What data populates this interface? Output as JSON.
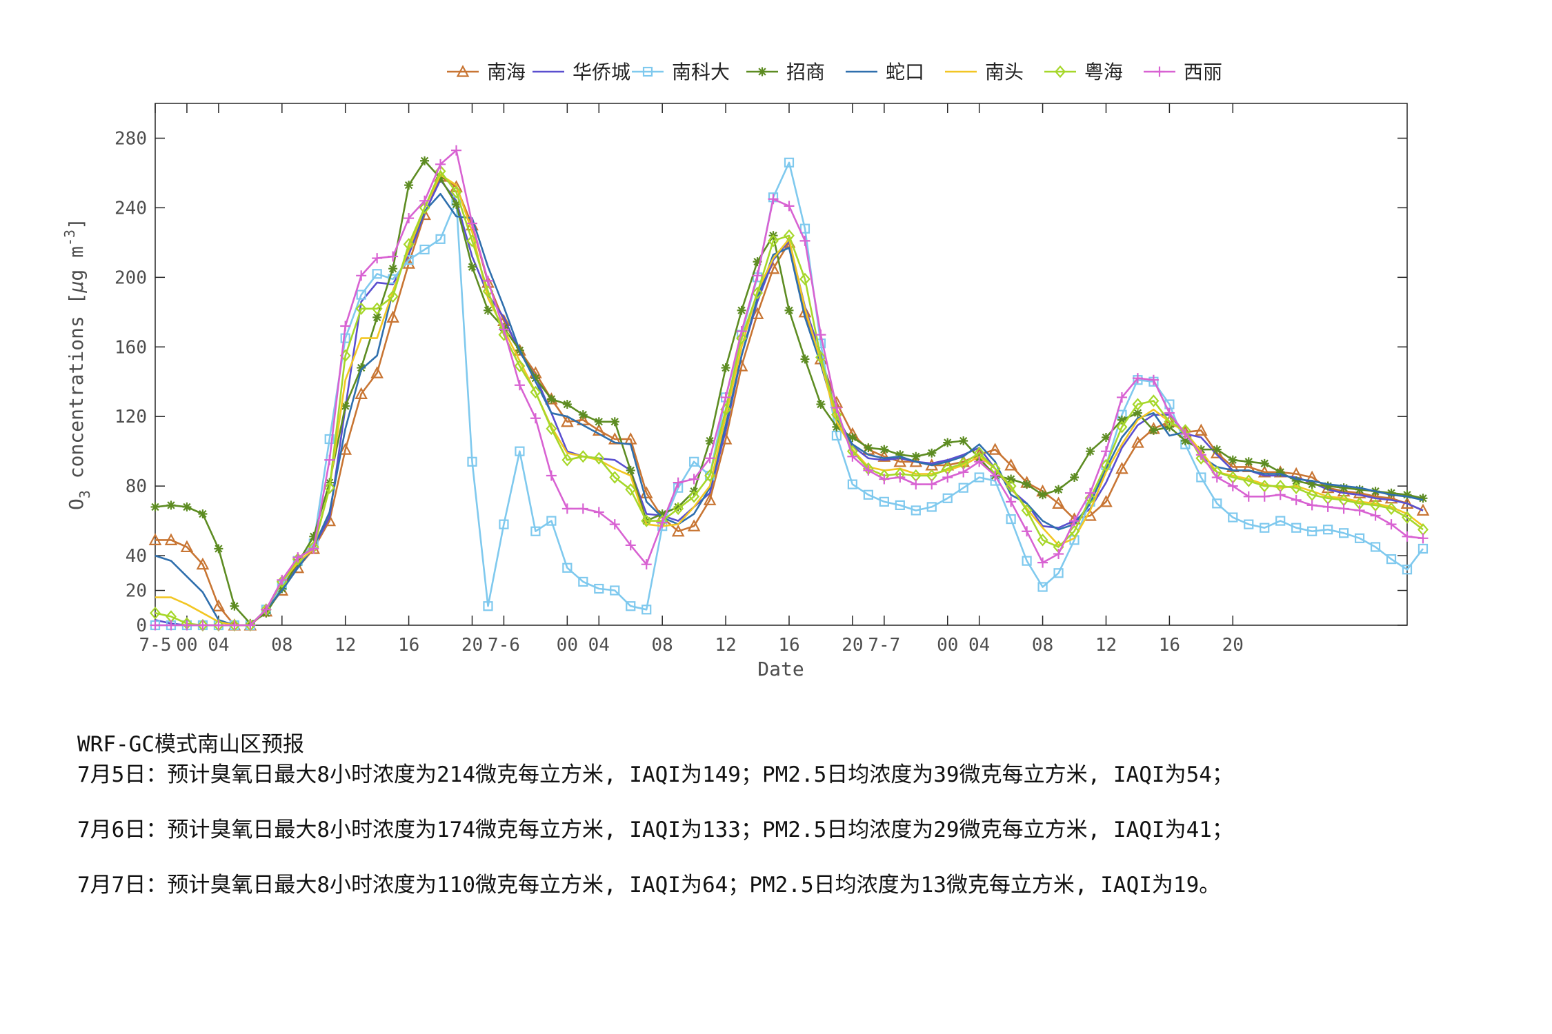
{
  "chart_data": {
    "type": "line",
    "xlabel": "Date",
    "ylabel_parts": {
      "o": "O",
      "sub": "3",
      "mid": " concentrations [",
      "mu": "μ",
      "g": "g m",
      "sup": "-3",
      "end": "]"
    },
    "ylim": [
      0,
      300
    ],
    "yticks": [
      0,
      20,
      40,
      80,
      120,
      160,
      200,
      240,
      280
    ],
    "xlim": [
      0,
      79
    ],
    "xticks": [
      {
        "x": 0,
        "label": "7-5"
      },
      {
        "x": 2,
        "label": "00"
      },
      {
        "x": 4,
        "label": "04"
      },
      {
        "x": 8,
        "label": "08"
      },
      {
        "x": 12,
        "label": "12"
      },
      {
        "x": 16,
        "label": "16"
      },
      {
        "x": 20,
        "label": "20"
      },
      {
        "x": 22,
        "label": "7-6"
      },
      {
        "x": 26,
        "label": "00"
      },
      {
        "x": 28,
        "label": "04"
      },
      {
        "x": 32,
        "label": "08"
      },
      {
        "x": 36,
        "label": "12"
      },
      {
        "x": 40,
        "label": "16"
      },
      {
        "x": 44,
        "label": "20"
      },
      {
        "x": 46,
        "label": "7-7"
      },
      {
        "x": 50,
        "label": "00"
      },
      {
        "x": 52,
        "label": "04"
      },
      {
        "x": 56,
        "label": "08"
      },
      {
        "x": 60,
        "label": "12"
      },
      {
        "x": 64,
        "label": "16"
      },
      {
        "x": 68,
        "label": "20"
      }
    ],
    "legend_position": "top",
    "series": [
      {
        "name": "南海",
        "color": "#c87533",
        "marker": "triangle",
        "values": [
          49,
          49,
          45,
          35,
          11,
          0,
          0,
          8,
          20,
          33,
          44,
          60,
          101,
          133,
          145,
          177,
          208,
          236,
          258,
          252,
          230,
          197,
          175,
          158,
          145,
          130,
          117,
          118,
          112,
          107,
          107,
          76,
          62,
          54,
          57,
          72,
          107,
          149,
          179,
          205,
          220,
          180,
          153,
          128,
          110,
          101,
          97,
          94,
          94,
          92,
          92,
          94,
          98,
          101,
          92,
          82,
          77,
          70,
          61,
          63,
          71,
          90,
          105,
          113,
          117,
          111,
          112,
          99,
          91,
          91,
          88,
          88,
          87,
          85,
          79,
          77,
          76,
          74,
          73,
          70,
          66
        ]
      },
      {
        "name": "华侨城",
        "color": "#5a4fcf",
        "marker": "none",
        "values": [
          3,
          1,
          0,
          0,
          0,
          0,
          0,
          9,
          22,
          34,
          45,
          62,
          125,
          186,
          197,
          196,
          213,
          237,
          256,
          244,
          212,
          190,
          177,
          157,
          143,
          122,
          100,
          97,
          96,
          95,
          89,
          64,
          63,
          60,
          68,
          76,
          112,
          155,
          186,
          210,
          221,
          183,
          156,
          121,
          103,
          96,
          95,
          96,
          94,
          93,
          95,
          98,
          102,
          90,
          78,
          70,
          57,
          56,
          60,
          67,
          82,
          102,
          115,
          121,
          121,
          110,
          108,
          98,
          89,
          89,
          86,
          86,
          85,
          82,
          78,
          76,
          75,
          73,
          72,
          70,
          66
        ]
      },
      {
        "name": "南科大",
        "color": "#7fc9ee",
        "marker": "square",
        "values": [
          0,
          0,
          0,
          0,
          0,
          0,
          0,
          9,
          23,
          37,
          47,
          107,
          165,
          190,
          202,
          199,
          210,
          216,
          222,
          244,
          94,
          11,
          58,
          100,
          54,
          60,
          33,
          25,
          21,
          20,
          11,
          9,
          57,
          79,
          94,
          86,
          131,
          167,
          200,
          246,
          266,
          228,
          162,
          109,
          81,
          75,
          71,
          69,
          66,
          68,
          73,
          79,
          85,
          83,
          61,
          37,
          22,
          30,
          49,
          71,
          92,
          121,
          141,
          140,
          127,
          104,
          85,
          70,
          62,
          58,
          56,
          60,
          56,
          54,
          55,
          53,
          50,
          45,
          38,
          32,
          44
        ]
      },
      {
        "name": "招商",
        "color": "#5d8c22",
        "marker": "star",
        "values": [
          68,
          69,
          68,
          64,
          44,
          11,
          1,
          7,
          21,
          36,
          51,
          82,
          126,
          148,
          177,
          205,
          253,
          267,
          257,
          242,
          206,
          181,
          171,
          158,
          142,
          130,
          127,
          121,
          117,
          117,
          89,
          60,
          64,
          68,
          77,
          106,
          148,
          181,
          209,
          224,
          181,
          153,
          127,
          114,
          108,
          102,
          101,
          98,
          97,
          99,
          105,
          106,
          96,
          86,
          84,
          81,
          75,
          78,
          85,
          100,
          108,
          118,
          122,
          112,
          114,
          106,
          101,
          101,
          95,
          94,
          93,
          88,
          83,
          81,
          80,
          79,
          78,
          77,
          76,
          75,
          73
        ]
      },
      {
        "name": "蛇口",
        "color": "#2f6fad",
        "marker": "none",
        "values": [
          40,
          37,
          28,
          19,
          3,
          0,
          0,
          9,
          20,
          33,
          45,
          65,
          113,
          147,
          155,
          192,
          216,
          238,
          248,
          235,
          234,
          206,
          183,
          158,
          140,
          122,
          120,
          115,
          110,
          105,
          104,
          71,
          62,
          58,
          64,
          79,
          115,
          155,
          188,
          213,
          217,
          177,
          150,
          119,
          104,
          98,
          96,
          97,
          94,
          92,
          94,
          97,
          104,
          94,
          75,
          70,
          60,
          55,
          58,
          70,
          90,
          108,
          119,
          122,
          109,
          111,
          97,
          91,
          89,
          89,
          87,
          87,
          84,
          83,
          81,
          80,
          79,
          77,
          75,
          74,
          72
        ]
      },
      {
        "name": "南头",
        "color": "#f2c623",
        "marker": "none",
        "values": [
          16,
          16,
          12,
          7,
          2,
          0,
          0,
          9,
          25,
          36,
          44,
          79,
          141,
          165,
          165,
          192,
          216,
          240,
          259,
          253,
          226,
          188,
          170,
          152,
          134,
          114,
          99,
          97,
          95,
          90,
          86,
          58,
          57,
          58,
          68,
          80,
          120,
          160,
          192,
          211,
          222,
          182,
          152,
          117,
          101,
          91,
          89,
          90,
          87,
          87,
          89,
          92,
          97,
          90,
          79,
          67,
          56,
          46,
          50,
          66,
          88,
          104,
          118,
          124,
          117,
          111,
          100,
          88,
          86,
          84,
          81,
          79,
          80,
          77,
          74,
          73,
          71,
          70,
          68,
          64,
          57
        ]
      },
      {
        "name": "粤海",
        "color": "#a6d72a",
        "marker": "diamond",
        "values": [
          7,
          5,
          1,
          0,
          0,
          0,
          0,
          9,
          25,
          38,
          45,
          79,
          155,
          182,
          182,
          189,
          219,
          240,
          261,
          249,
          221,
          192,
          167,
          149,
          134,
          113,
          95,
          97,
          96,
          85,
          78,
          60,
          60,
          67,
          74,
          86,
          124,
          165,
          191,
          221,
          224,
          199,
          154,
          121,
          100,
          90,
          86,
          87,
          86,
          86,
          90,
          93,
          99,
          90,
          80,
          66,
          49,
          45,
          54,
          73,
          92,
          114,
          127,
          129,
          117,
          112,
          96,
          88,
          85,
          83,
          80,
          80,
          79,
          75,
          73,
          72,
          70,
          69,
          67,
          62,
          55
        ]
      },
      {
        "name": "西丽",
        "color": "#d862d2",
        "marker": "plus",
        "values": [
          0,
          0,
          0,
          0,
          0,
          0,
          0,
          9,
          26,
          39,
          44,
          95,
          172,
          201,
          211,
          212,
          234,
          244,
          265,
          273,
          231,
          198,
          170,
          138,
          119,
          86,
          67,
          67,
          65,
          58,
          46,
          35,
          59,
          82,
          84,
          96,
          131,
          169,
          201,
          245,
          241,
          221,
          167,
          125,
          97,
          89,
          84,
          85,
          81,
          81,
          85,
          88,
          94,
          86,
          71,
          54,
          36,
          41,
          60,
          76,
          100,
          131,
          142,
          141,
          122,
          110,
          98,
          85,
          80,
          74,
          74,
          75,
          72,
          69,
          68,
          67,
          66,
          63,
          58,
          51,
          50
        ]
      }
    ]
  },
  "notes": {
    "title": "WRF-GC模式南山区预报",
    "lines": [
      "7月5日：预计臭氧日最大8小时浓度为214微克每立方米, IAQI为149；PM2.5日均浓度为39微克每立方米, IAQI为54；",
      "7月6日：预计臭氧日最大8小时浓度为174微克每立方米, IAQI为133；PM2.5日均浓度为29微克每立方米, IAQI为41；",
      "7月7日：预计臭氧日最大8小时浓度为110微克每立方米, IAQI为64；PM2.5日均浓度为13微克每立方米, IAQI为19。"
    ]
  }
}
